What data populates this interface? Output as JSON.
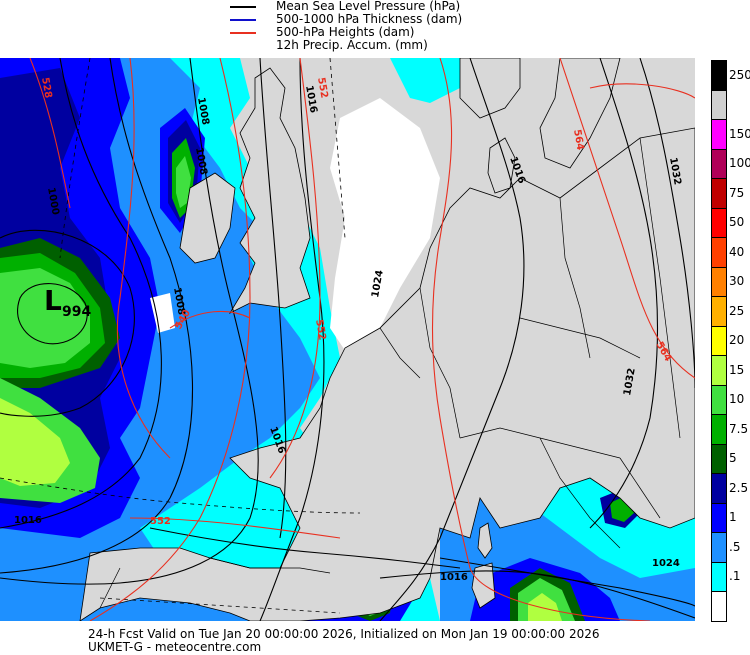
{
  "legend": [
    {
      "label": "Mean Sea Level Pressure (hPa)",
      "color": "#000000"
    },
    {
      "label": "500-1000 hPa Thickness (dam)",
      "color": "#1010cc"
    },
    {
      "label": "500-hPa Heights (dam)",
      "color": "#e83020"
    },
    {
      "label": "12h Precip. Accum. (mm)",
      "color": ""
    }
  ],
  "colors": {
    "land": "#d8d8d8",
    "sea": "#d8d8d8",
    "border": "#000000",
    "isobar": "#000000",
    "height": "#e83020"
  },
  "scale": [
    {
      "label": "250",
      "color": "#000000"
    },
    {
      "label": "",
      "color": "#d0d0d0"
    },
    {
      "label": "150",
      "color": "#ff00ff"
    },
    {
      "label": "100",
      "color": "#b00058"
    },
    {
      "label": "75",
      "color": "#c00000"
    },
    {
      "label": "50",
      "color": "#ff0000"
    },
    {
      "label": "40",
      "color": "#ff4000"
    },
    {
      "label": "30",
      "color": "#ff8000"
    },
    {
      "label": "25",
      "color": "#ffb000"
    },
    {
      "label": "20",
      "color": "#ffff00"
    },
    {
      "label": "15",
      "color": "#b0ff40"
    },
    {
      "label": "10",
      "color": "#40e040"
    },
    {
      "label": "7.5",
      "color": "#00b000"
    },
    {
      "label": "5",
      "color": "#006000"
    },
    {
      "label": "2.5",
      "color": "#0000a0"
    },
    {
      "label": "1",
      "color": "#0000ff"
    },
    {
      "label": ".5",
      "color": "#1e90ff"
    },
    {
      "label": ".1",
      "color": "#00ffff"
    },
    {
      "label": "",
      "color": "#ffffff"
    }
  ],
  "low": {
    "letter": "L",
    "value": "994"
  },
  "isobar_labels": [
    "1008",
    "1016",
    "1000",
    "1008",
    "1008",
    "1016",
    "1016",
    "1024",
    "1016",
    "1032",
    "1032",
    "1024",
    "1016"
  ],
  "height_labels": [
    "528",
    "552",
    "540",
    "552",
    "564",
    "564",
    "552"
  ],
  "footer": {
    "line1": "24-h Fcst Valid on Tue Jan 20 00:00:00 2026, Initialized on Mon Jan 19 00:00:00 2026",
    "line2": "UKMET-G  - meteocentre.com"
  }
}
